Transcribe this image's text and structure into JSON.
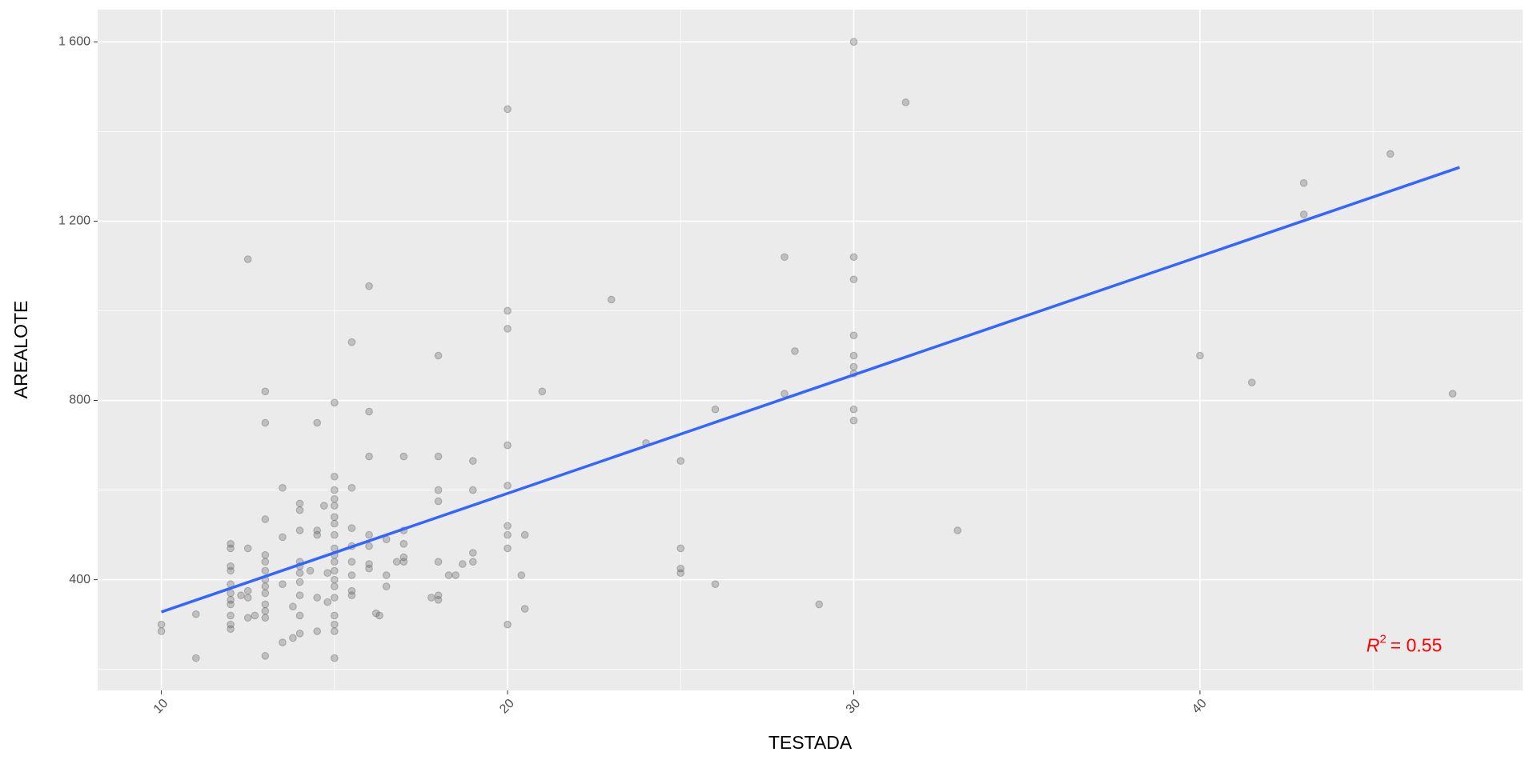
{
  "chart_data": {
    "type": "scatter",
    "xlabel": "TESTADA",
    "ylabel": "AREALOTE",
    "xlim": [
      8.16,
      49.32
    ],
    "ylim": [
      153,
      1672
    ],
    "xticks": [
      10,
      20,
      30,
      40
    ],
    "yticks": [
      400,
      800,
      {
        "value": 1200,
        "label": "1 200"
      },
      {
        "value": 1600,
        "label": "1 600"
      }
    ],
    "x_minor_grid": [
      15,
      25,
      35,
      45
    ],
    "y_minor_grid": [
      200,
      600,
      1000,
      1400
    ],
    "grid": true,
    "panel_color": "#ebebeb",
    "grid_color": "#ffffff",
    "point_color": "#595959",
    "point_alpha": 0.3,
    "x": [
      10,
      10,
      11,
      11,
      12,
      12,
      12,
      12,
      12,
      12,
      12,
      12,
      12,
      12,
      12,
      12.3,
      12.5,
      12.5,
      12.5,
      12.5,
      12.5,
      12.7,
      13,
      13,
      13,
      13,
      13,
      13,
      13,
      13,
      13,
      13,
      13,
      13,
      13,
      13.5,
      13.5,
      13.5,
      13.5,
      13.8,
      13.8,
      14,
      14,
      14,
      14,
      14,
      14,
      14,
      14,
      14,
      14,
      14.3,
      14.5,
      14.5,
      14.5,
      14.5,
      14.5,
      14.7,
      14.8,
      14.8,
      15,
      15,
      15,
      15,
      15,
      15,
      15,
      15,
      15,
      15,
      15,
      15,
      15,
      15,
      15,
      15,
      15,
      15,
      15,
      15.5,
      15.5,
      15.5,
      15.5,
      15.5,
      15.5,
      15.5,
      15.5,
      16,
      16,
      16,
      16,
      16,
      16,
      16,
      16.2,
      16.3,
      16.5,
      16.5,
      16.5,
      16.8,
      17,
      17,
      17,
      17,
      17,
      17.8,
      18,
      18,
      18,
      18,
      18,
      18,
      18,
      18.3,
      18.5,
      18.7,
      19,
      19,
      19,
      19,
      20,
      20,
      20,
      20,
      20,
      20,
      20,
      20,
      20,
      20.4,
      20.5,
      20.5,
      21,
      23,
      24,
      25,
      25,
      25,
      25,
      26,
      26,
      28,
      28,
      28.3,
      29,
      30,
      30,
      30,
      30,
      30,
      30,
      30,
      30,
      30,
      31.5,
      33,
      40,
      41.5,
      43,
      43,
      45.5,
      47.3
    ],
    "y": [
      300,
      285,
      225,
      323,
      480,
      470,
      430,
      420,
      390,
      370,
      355,
      345,
      320,
      300,
      290,
      365,
      1115,
      470,
      375,
      360,
      315,
      320,
      820,
      750,
      535,
      455,
      440,
      420,
      400,
      385,
      370,
      345,
      330,
      315,
      230,
      605,
      495,
      390,
      260,
      340,
      270,
      570,
      555,
      510,
      440,
      430,
      415,
      395,
      365,
      320,
      280,
      420,
      750,
      510,
      500,
      360,
      285,
      565,
      415,
      350,
      795,
      630,
      600,
      580,
      565,
      540,
      525,
      500,
      470,
      455,
      440,
      420,
      400,
      385,
      360,
      320,
      300,
      285,
      225,
      930,
      605,
      515,
      475,
      440,
      410,
      375,
      365,
      1055,
      775,
      675,
      500,
      475,
      435,
      425,
      325,
      320,
      490,
      410,
      385,
      440,
      675,
      510,
      480,
      450,
      440,
      360,
      900,
      675,
      600,
      575,
      440,
      365,
      355,
      410,
      410,
      435,
      665,
      600,
      460,
      440,
      1450,
      1000,
      960,
      700,
      610,
      520,
      500,
      470,
      300,
      410,
      500,
      335,
      820,
      1025,
      705,
      665,
      470,
      425,
      415,
      780,
      390,
      1120,
      815,
      910,
      345,
      1600,
      1120,
      1070,
      945,
      900,
      875,
      860,
      780,
      755,
      1465,
      510,
      900,
      840,
      1285,
      1215,
      1350,
      815
    ],
    "fit": {
      "color": "#3366ff",
      "x": [
        10,
        47.5
      ],
      "y": [
        328,
        1320
      ]
    },
    "annotation": {
      "x": 45.9,
      "y": 250,
      "color": "#ff0000",
      "parts": [
        "R",
        "2",
        "= 0.55"
      ]
    }
  }
}
